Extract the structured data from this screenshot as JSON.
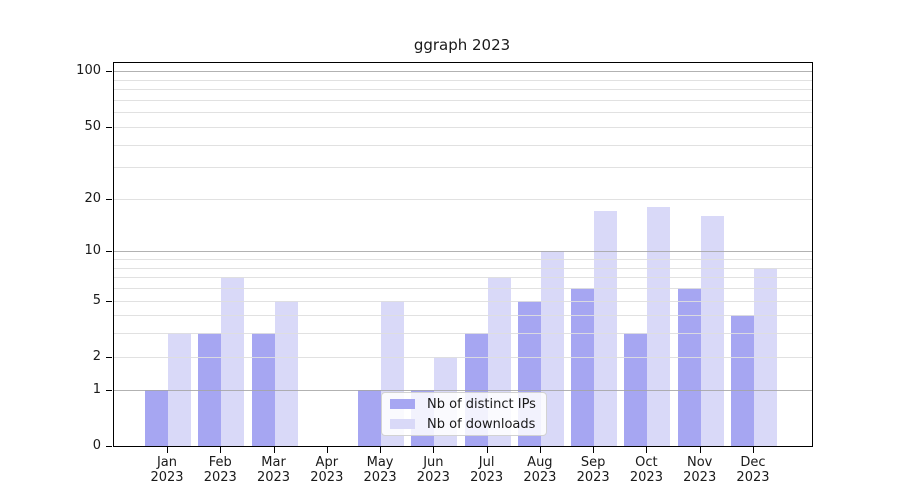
{
  "title": "ggraph 2023",
  "chart_data": {
    "type": "bar",
    "title": "ggraph 2023",
    "categories": [
      "Jan",
      "Feb",
      "Mar",
      "Apr",
      "May",
      "Jun",
      "Jul",
      "Aug",
      "Sep",
      "Oct",
      "Nov",
      "Dec"
    ],
    "category_year_label": "2023",
    "series": [
      {
        "name": "Nb of distinct IPs",
        "color": "#a6a6f2",
        "values": [
          1,
          3,
          3,
          0,
          1,
          1,
          3,
          5,
          6,
          3,
          6,
          4
        ]
      },
      {
        "name": "Nb of downloads",
        "color": "#d9d9f8",
        "values": [
          3,
          7,
          5,
          0,
          5,
          2,
          7,
          10,
          17,
          18,
          16,
          8
        ]
      }
    ],
    "yscale": "log1p",
    "y_tick_labels": [
      0,
      1,
      2,
      5,
      10,
      20,
      50,
      100
    ],
    "y_minor_gridlines": [
      2,
      3,
      4,
      5,
      6,
      7,
      8,
      9,
      20,
      30,
      40,
      50,
      60,
      70,
      80,
      90
    ],
    "y_major_gridlines": [
      1,
      10,
      100
    ],
    "ylim_top": 111,
    "xlabel": "",
    "ylabel": "",
    "grid": true,
    "legend_position": "inside-bottom-center"
  },
  "colors": {
    "bar_dark": "#a6a6f2",
    "bar_light": "#d9d9f8",
    "frame": "#000000",
    "text": "#1a1a1a",
    "grid_minor": "#dedede",
    "grid_major": "#a5a5a5",
    "legend_border": "#d2d2d2"
  }
}
